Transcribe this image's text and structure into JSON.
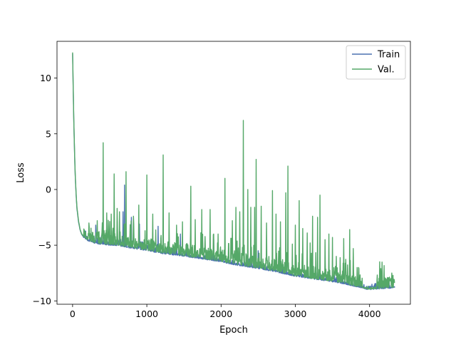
{
  "chart_data": {
    "type": "line",
    "title": "",
    "xlabel": "Epoch",
    "ylabel": "Loss",
    "xlim": [
      -210,
      4550
    ],
    "ylim": [
      -10.3,
      13.3
    ],
    "xticks": [
      0,
      1000,
      2000,
      3000,
      4000
    ],
    "yticks": [
      -10,
      -5,
      0,
      5,
      10
    ],
    "grid": false,
    "legend": {
      "placement": "top-right"
    },
    "series": [
      {
        "name": "Train",
        "color": "#4c72b0",
        "x": [
          0,
          10,
          20,
          30,
          40,
          50,
          60,
          80,
          100,
          120,
          150,
          200,
          300,
          400,
          500,
          600,
          800,
          1000,
          1200,
          1500,
          1800,
          2000,
          2200,
          2500,
          2800,
          3000,
          3300,
          3600,
          3800,
          3900,
          3950,
          4000,
          4100,
          4200,
          4300,
          4340
        ],
        "y": [
          12.2,
          8.5,
          5.0,
          2.4,
          0.5,
          -0.8,
          -1.8,
          -2.9,
          -3.6,
          -4.0,
          -4.3,
          -4.6,
          -4.85,
          -4.95,
          -5.0,
          -5.05,
          -5.3,
          -5.5,
          -5.75,
          -6.0,
          -6.3,
          -6.5,
          -6.8,
          -7.1,
          -7.5,
          -7.8,
          -8.1,
          -8.4,
          -8.7,
          -8.85,
          -8.95,
          -9.0,
          -8.95,
          -8.9,
          -8.85,
          -8.8
        ],
        "spikes": [
          [
            310,
            -3.2
          ],
          [
            600,
            -2.9
          ],
          [
            680,
            -2.0
          ],
          [
            700,
            0.4
          ],
          [
            790,
            -2.5
          ],
          [
            900,
            -3.1
          ],
          [
            1150,
            -3.3
          ],
          [
            1450,
            -4.0
          ],
          [
            1900,
            -4.5
          ],
          [
            2500,
            -5.5
          ],
          [
            2950,
            -7.0
          ],
          [
            3130,
            -7.4
          ],
          [
            4180,
            -8.3
          ]
        ]
      },
      {
        "name": "Val.",
        "color": "#55a868",
        "x": [
          0,
          10,
          20,
          30,
          40,
          50,
          60,
          80,
          100,
          120,
          150,
          200,
          300,
          400,
          500,
          600,
          800,
          1000,
          1200,
          1500,
          1800,
          2000,
          2200,
          2500,
          2800,
          3000,
          3300,
          3600,
          3800,
          3900,
          3950,
          4000,
          4100,
          4200,
          4300,
          4340
        ],
        "y": [
          12.3,
          8.6,
          5.1,
          2.5,
          0.6,
          -0.7,
          -1.7,
          -2.8,
          -3.55,
          -3.95,
          -4.25,
          -4.55,
          -4.8,
          -4.9,
          -4.95,
          -5.0,
          -5.25,
          -5.45,
          -5.7,
          -5.95,
          -6.25,
          -6.45,
          -6.75,
          -7.05,
          -7.45,
          -7.75,
          -8.05,
          -8.35,
          -8.65,
          -8.8,
          -8.9,
          -8.95,
          -8.9,
          -8.85,
          -8.8,
          -8.75
        ],
        "spikes": [
          [
            220,
            -3.0
          ],
          [
            330,
            -2.8
          ],
          [
            410,
            4.2
          ],
          [
            460,
            -2.1
          ],
          [
            520,
            -2.2
          ],
          [
            560,
            1.4
          ],
          [
            600,
            -1.7
          ],
          [
            630,
            -2.0
          ],
          [
            720,
            1.6
          ],
          [
            820,
            -2.4
          ],
          [
            890,
            -1.4
          ],
          [
            1000,
            1.3
          ],
          [
            1080,
            -2.2
          ],
          [
            1220,
            3.1
          ],
          [
            1300,
            -2.1
          ],
          [
            1400,
            -3.2
          ],
          [
            1480,
            -2.9
          ],
          [
            1590,
            0.3
          ],
          [
            1650,
            -2.7
          ],
          [
            1740,
            -1.8
          ],
          [
            1850,
            -1.8
          ],
          [
            1900,
            -4.0
          ],
          [
            1960,
            -4.0
          ],
          [
            2050,
            1.0
          ],
          [
            2150,
            -2.8
          ],
          [
            2200,
            -1.6
          ],
          [
            2250,
            -2.0
          ],
          [
            2300,
            6.2
          ],
          [
            2360,
            0.0
          ],
          [
            2400,
            -1.6
          ],
          [
            2450,
            -1.6
          ],
          [
            2470,
            2.7
          ],
          [
            2540,
            -1.5
          ],
          [
            2610,
            -3.0
          ],
          [
            2690,
            -0.1
          ],
          [
            2740,
            -2.2
          ],
          [
            2800,
            -2.9
          ],
          [
            2870,
            -0.3
          ],
          [
            2900,
            2.1
          ],
          [
            2960,
            -4.9
          ],
          [
            3000,
            -3.2
          ],
          [
            3050,
            -1.0
          ],
          [
            3100,
            -3.5
          ],
          [
            3160,
            -3.9
          ],
          [
            3200,
            -4.8
          ],
          [
            3230,
            -2.4
          ],
          [
            3300,
            -2.5
          ],
          [
            3330,
            -0.5
          ],
          [
            3400,
            -4.5
          ],
          [
            3450,
            -4.0
          ],
          [
            3500,
            -4.3
          ],
          [
            3550,
            -6.0
          ],
          [
            3650,
            -4.4
          ],
          [
            3730,
            -3.6
          ],
          [
            3780,
            -5.3
          ],
          [
            3850,
            -7.0
          ],
          [
            4150,
            -7.1
          ],
          [
            4170,
            -7.6
          ],
          [
            4220,
            -8.0
          ],
          [
            4270,
            -8.1
          ],
          [
            4300,
            -7.5
          ]
        ]
      }
    ]
  }
}
